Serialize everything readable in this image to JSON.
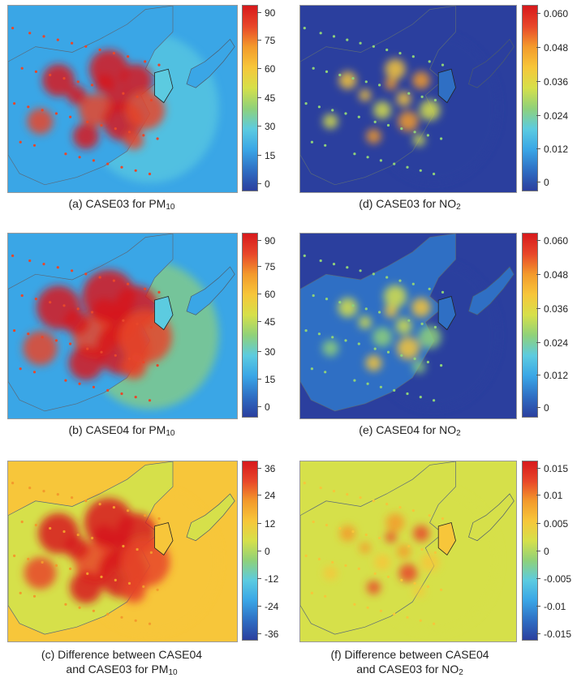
{
  "chart_data": [
    {
      "type": "heatmap",
      "panel": "a",
      "caption_line1": "(a) CASE03 for PM",
      "caption_sub": "10",
      "caption_line2": "",
      "colorbar_ticks": [
        "90",
        "75",
        "60",
        "45",
        "30",
        "15",
        "0"
      ],
      "value_range": [
        0,
        90
      ],
      "field": {
        "background": 0.22,
        "plume": 0.38,
        "hotspot_peak": 1.0,
        "hotspot_spread": 0.8,
        "ocean": 0.25
      }
    },
    {
      "type": "heatmap",
      "panel": "d",
      "caption_line1": "(d) CASE03 for NO",
      "caption_sub": "2",
      "caption_line2": "",
      "colorbar_ticks": [
        "0.060",
        "0.048",
        "0.036",
        "0.024",
        "0.012",
        "0"
      ],
      "value_range": [
        0,
        0.06
      ],
      "field": {
        "background": 0.08,
        "plume": 0.05,
        "hotspot_peak": 0.7,
        "hotspot_spread": 0.35,
        "ocean": 0.06
      }
    },
    {
      "type": "heatmap",
      "panel": "b",
      "caption_line1": "(b) CASE04 for PM",
      "caption_sub": "10",
      "caption_line2": "",
      "colorbar_ticks": [
        "90",
        "75",
        "60",
        "45",
        "30",
        "15",
        "0"
      ],
      "value_range": [
        0,
        90
      ],
      "field": {
        "background": 0.25,
        "plume": 0.48,
        "hotspot_peak": 1.0,
        "hotspot_spread": 1.15,
        "ocean": 0.28
      }
    },
    {
      "type": "heatmap",
      "panel": "e",
      "caption_line1": "(e) CASE04 for NO",
      "caption_sub": "2",
      "caption_line2": "",
      "colorbar_ticks": [
        "0.060",
        "0.048",
        "0.036",
        "0.024",
        "0.012",
        "0"
      ],
      "value_range": [
        0,
        0.06
      ],
      "field": {
        "background": 0.1,
        "plume": 0.06,
        "hotspot_peak": 0.65,
        "hotspot_spread": 0.4,
        "ocean": 0.08
      }
    },
    {
      "type": "heatmap",
      "panel": "c",
      "caption_line1": "(c) Difference between CASE04",
      "caption_sub": "10",
      "caption_line2": "and CASE03 for PM",
      "colorbar_ticks": [
        "36",
        "24",
        "12",
        "0",
        "-12",
        "-24",
        "-36"
      ],
      "value_range": [
        -36,
        36
      ],
      "field": {
        "background": 0.55,
        "plume": 0.62,
        "hotspot_peak": 0.98,
        "hotspot_spread": 1.05,
        "ocean": 0.6
      }
    },
    {
      "type": "heatmap",
      "panel": "f",
      "caption_line1": "(f) Difference between CASE04",
      "caption_sub": "2",
      "caption_line2": "and CASE03 for NO",
      "colorbar_ticks": [
        "0.015",
        "0.01",
        "0.005",
        "0",
        "-0.005",
        "-0.01",
        "-0.015"
      ],
      "value_range": [
        -0.015,
        0.015
      ],
      "field": {
        "background": 0.56,
        "plume": 0.5,
        "hotspot_peak": 0.8,
        "hotspot_spread": 0.3,
        "ocean": 0.55
      }
    }
  ],
  "colormap": [
    "#2b3f9e",
    "#2f6fc4",
    "#3aa6e6",
    "#5ccbe0",
    "#8fd17a",
    "#d6e04a",
    "#f7c63a",
    "#f39a2c",
    "#e8472a",
    "#d7191c"
  ]
}
